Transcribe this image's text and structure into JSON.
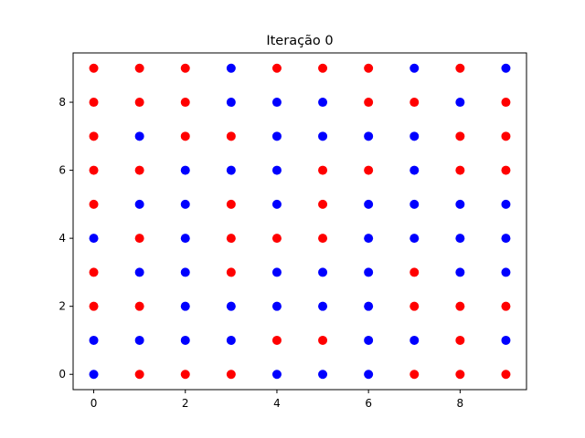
{
  "chart_data": {
    "type": "scatter",
    "title": "Iteração 0",
    "xlabel": "",
    "ylabel": "",
    "xlim": [
      -0.45,
      9.45
    ],
    "ylim": [
      -0.45,
      9.45
    ],
    "xticks": [
      "0",
      "2",
      "4",
      "6",
      "8"
    ],
    "yticks": [
      "0",
      "2",
      "4",
      "6",
      "8"
    ],
    "grid": false,
    "colors": {
      "R": "#ff0000",
      "B": "#0000ff"
    },
    "grid_rows_top_to_bottom": [
      "RRRBRRRBRB",
      "RRRBBBRRBR",
      "RBRRBBBBRR",
      "RRBBBRRBRR",
      "RBBRBRBBBB",
      "BRBRRRBBBB",
      "RBBRBBBRBB",
      "RRBBBBBRRR",
      "BBBBRRBBRB",
      "BRRRBBBRRR"
    ]
  }
}
